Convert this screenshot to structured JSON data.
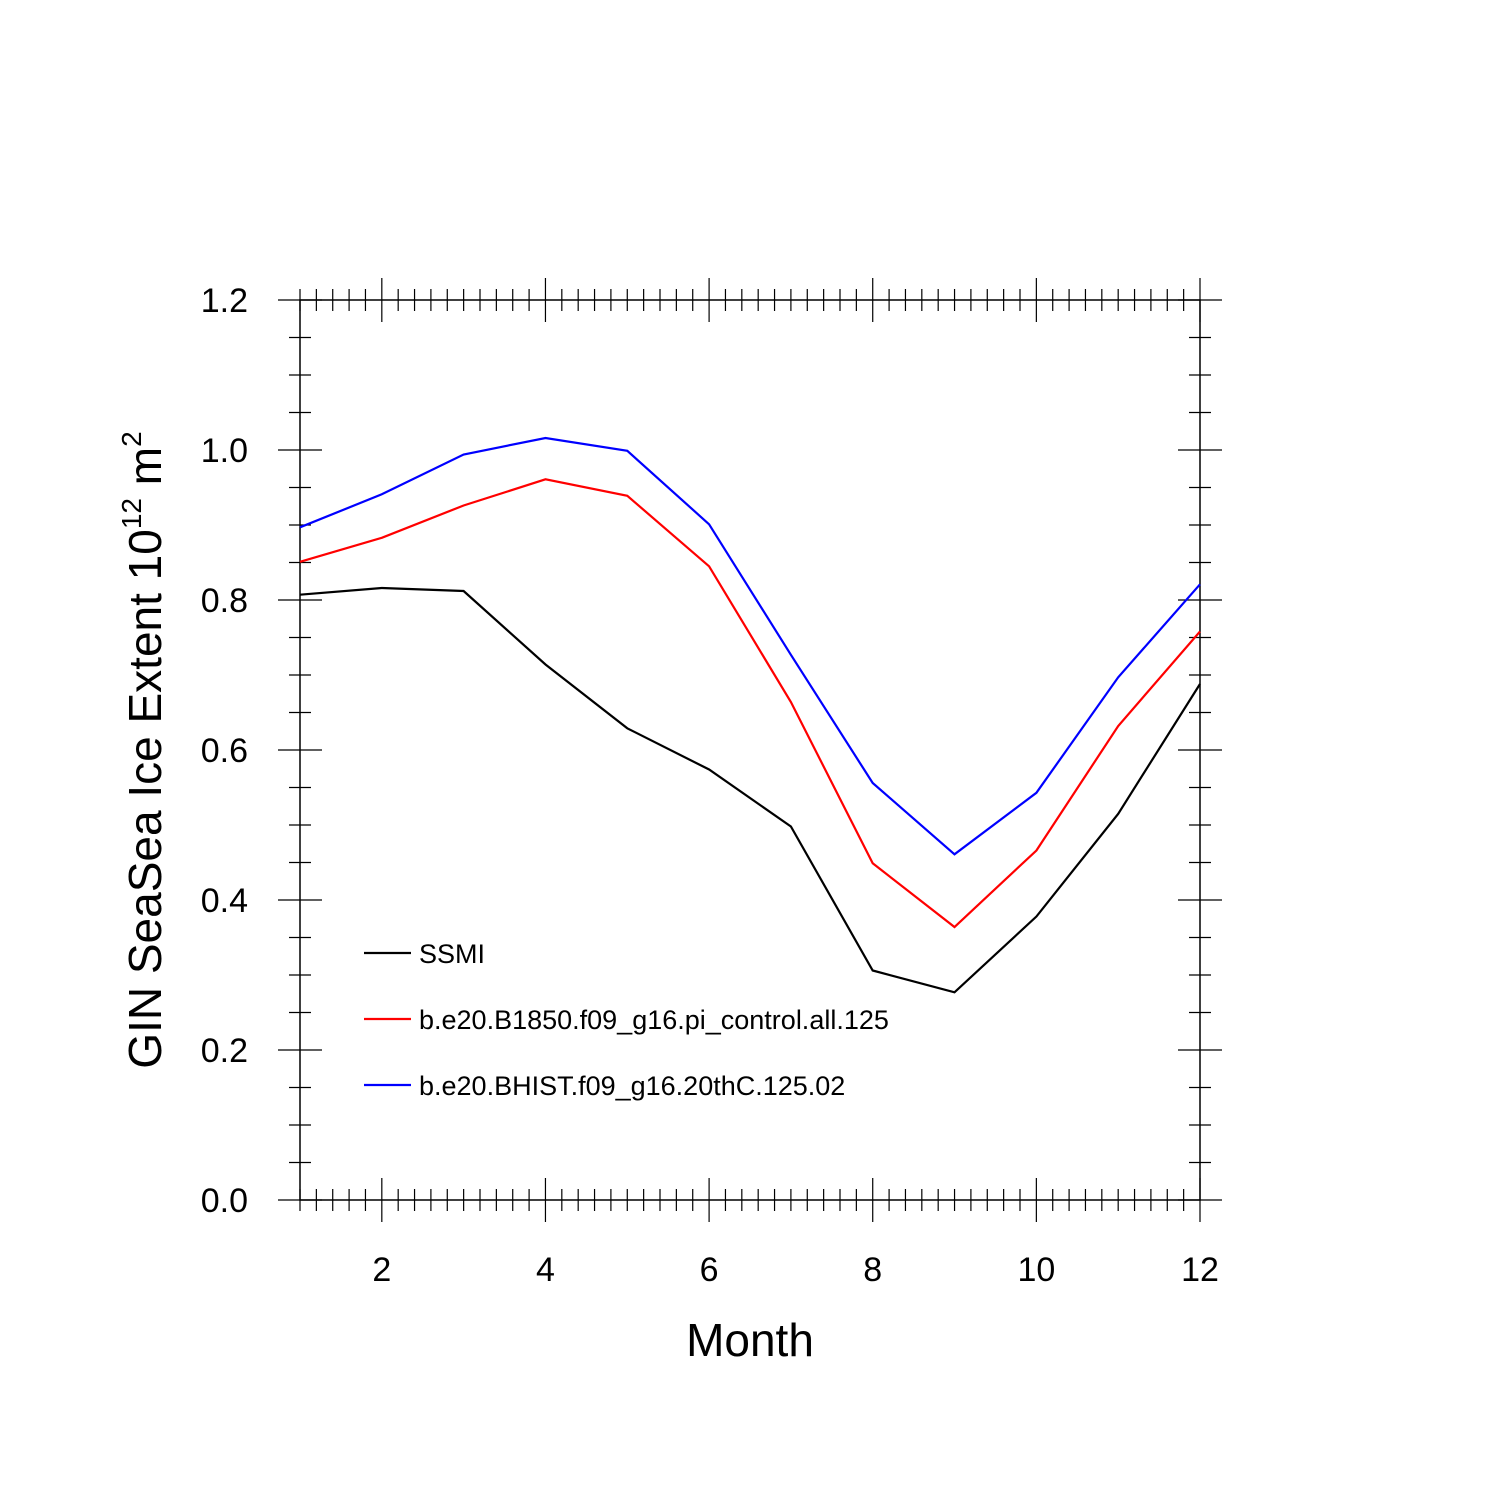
{
  "chart_data": {
    "type": "line",
    "xlabel": "Month",
    "ylabel": "GIN SeaSea Ice Extent 10",
    "ylabel_sup": "12",
    "ylabel_tail": " m",
    "ylabel_tail_sup": "2",
    "xlim": [
      1,
      12
    ],
    "ylim": [
      0.0,
      1.2
    ],
    "x_ticks": [
      2,
      4,
      6,
      8,
      10,
      12
    ],
    "y_ticks": [
      "0.0",
      "0.2",
      "0.4",
      "0.6",
      "0.8",
      "1.0",
      "1.2"
    ],
    "y_tick_values": [
      0.0,
      0.2,
      0.4,
      0.6,
      0.8,
      1.0,
      1.2
    ],
    "x": [
      1,
      2,
      3,
      4,
      5,
      6,
      7,
      8,
      9,
      10,
      11,
      12
    ],
    "series": [
      {
        "name": "SSMI",
        "color": "#000000",
        "values": [
          0.807,
          0.816,
          0.812,
          0.714,
          0.629,
          0.574,
          0.498,
          0.306,
          0.277,
          0.378,
          0.515,
          0.688
        ]
      },
      {
        "name": "b.e20.B1850.f09_g16.pi_control.all.125",
        "color": "#ff0000",
        "values": [
          0.851,
          0.883,
          0.926,
          0.961,
          0.939,
          0.845,
          0.664,
          0.449,
          0.364,
          0.466,
          0.632,
          0.758
        ]
      },
      {
        "name": "b.e20.BHIST.f09_g16.20thC.125.02",
        "color": "#0000ff",
        "values": [
          0.897,
          0.941,
          0.994,
          1.016,
          0.999,
          0.901,
          0.727,
          0.556,
          0.461,
          0.543,
          0.697,
          0.821
        ]
      }
    ],
    "legend_position": "bottom-left",
    "grid": false
  }
}
